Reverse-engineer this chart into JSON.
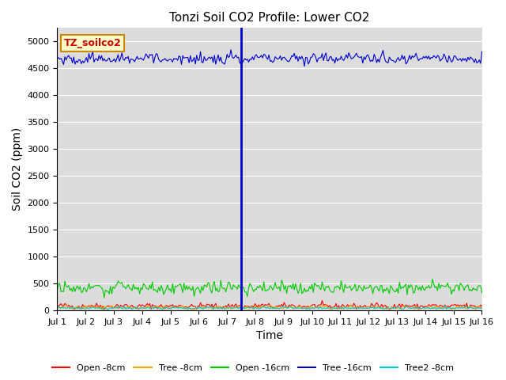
{
  "title": "Tonzi Soil CO2 Profile: Lower CO2",
  "xlabel": "Time",
  "ylabel": "Soil CO2 (ppm)",
  "ylim": [
    0,
    5250
  ],
  "yticks": [
    0,
    500,
    1000,
    1500,
    2000,
    2500,
    3000,
    3500,
    4000,
    4500,
    5000
  ],
  "x_start_day": 1,
  "x_end_day": 16,
  "xtick_days": [
    1,
    2,
    3,
    4,
    5,
    6,
    7,
    8,
    9,
    10,
    11,
    12,
    13,
    14,
    15,
    16
  ],
  "n_points": 336,
  "blue_line_day": 7.5,
  "series": {
    "open_8cm": {
      "color": "#ff0000",
      "base": 80,
      "noise": 25,
      "label": "Open -8cm"
    },
    "tree_8cm": {
      "color": "#ffa500",
      "base": 55,
      "noise": 18,
      "label": "Tree -8cm"
    },
    "open_16cm": {
      "color": "#00cc00",
      "base": 420,
      "noise": 55,
      "label": "Open -16cm"
    },
    "tree_16cm": {
      "color": "#0000cc",
      "base": 4680,
      "noise": 50,
      "label": "Tree -16cm"
    },
    "tree2_8cm": {
      "color": "#00cccc",
      "base": 45,
      "noise": 12,
      "label": "Tree2 -8cm"
    }
  },
  "bg_color": "#dcdcdc",
  "legend_box_color": "#ffffcc",
  "legend_box_edge": "#cc8800",
  "legend_text": "TZ_soilco2",
  "legend_text_color": "#cc0000"
}
